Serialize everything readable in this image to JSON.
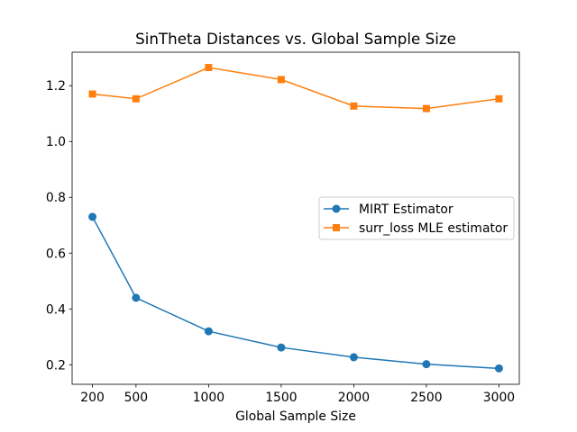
{
  "chart_data": {
    "type": "line",
    "title": "SinTheta Distances vs. Global Sample Size",
    "xlabel": "Global Sample Size",
    "ylabel": "",
    "x": [
      200,
      500,
      1000,
      1500,
      2000,
      2500,
      3000
    ],
    "xticks": [
      200,
      500,
      1000,
      1500,
      2000,
      2500,
      3000
    ],
    "xlim": [
      60,
      3140
    ],
    "yticks": [
      0.2,
      0.4,
      0.6,
      0.8,
      1.0,
      1.2
    ],
    "ytick_labels": [
      "0.2",
      "0.4",
      "0.6",
      "0.8",
      "1.0",
      "1.2"
    ],
    "ylim": [
      0.13,
      1.32
    ],
    "grid": false,
    "legend_position": "center-right",
    "series": [
      {
        "name": "MIRT Estimator",
        "color": "#1f77b4",
        "marker": "circle",
        "values": [
          0.73,
          0.44,
          0.32,
          0.262,
          0.227,
          0.202,
          0.187
        ]
      },
      {
        "name": "surr_loss MLE estimator",
        "color": "#ff7f0e",
        "marker": "square",
        "values": [
          1.17,
          1.153,
          1.265,
          1.222,
          1.127,
          1.118,
          1.153
        ]
      }
    ]
  }
}
